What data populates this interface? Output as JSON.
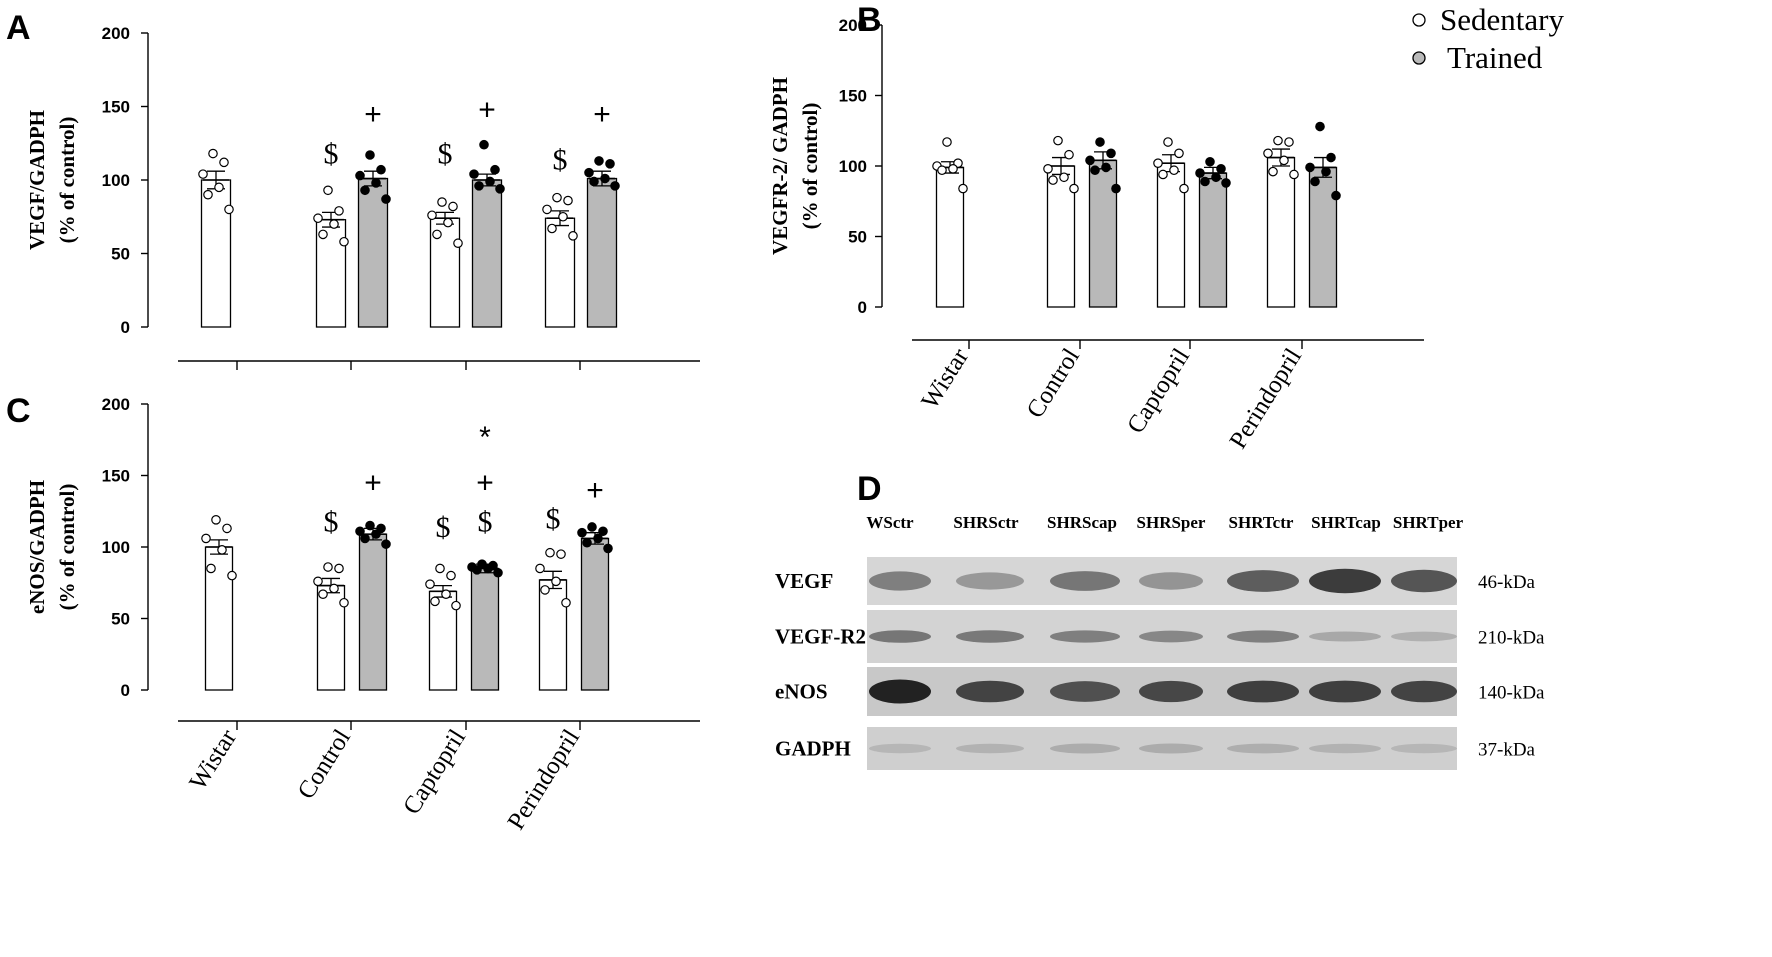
{
  "legend": {
    "items": [
      {
        "label": "Sedentary",
        "color": "#ffffff"
      },
      {
        "label": "Trained",
        "color": "#b9b9b9"
      }
    ]
  },
  "colors": {
    "sedentary_bar": "#ffffff",
    "trained_bar": "#b9b9b9",
    "axis": "#000000"
  },
  "chart_data": [
    {
      "panel": "A",
      "type": "bar",
      "ylabel": [
        "VEGF/GADPH",
        "(% of control)"
      ],
      "ylim": [
        0,
        200
      ],
      "yticks": [
        0,
        50,
        100,
        150,
        200
      ],
      "categories": [
        "Wistar",
        "Control",
        "Captopril",
        "Perindopril"
      ],
      "series": [
        {
          "name": "Sedentary",
          "values": [
            100,
            73,
            74,
            74
          ],
          "errors": [
            6,
            5,
            4,
            5
          ],
          "points": [
            [
              118,
              112,
              104,
              95,
              90,
              80
            ],
            [
              93,
              79,
              74,
              70,
              63,
              58
            ],
            [
              85,
              82,
              76,
              71,
              63,
              57
            ],
            [
              88,
              86,
              80,
              75,
              67,
              62
            ]
          ]
        },
        {
          "name": "Trained",
          "values": [
            null,
            101,
            100,
            101
          ],
          "errors": [
            null,
            5,
            4,
            5
          ],
          "points": [
            [],
            [
              117,
              107,
              103,
              98,
              93,
              87
            ],
            [
              124,
              107,
              104,
              99,
              96,
              94
            ],
            [
              113,
              111,
              105,
              101,
              99,
              96
            ]
          ]
        }
      ],
      "annotations": [
        {
          "category": 1,
          "series": 0,
          "text": "$",
          "y": 118
        },
        {
          "category": 1,
          "series": 1,
          "text": "+",
          "y": 145
        },
        {
          "category": 2,
          "series": 0,
          "text": "$",
          "y": 118
        },
        {
          "category": 2,
          "series": 1,
          "text": "+",
          "y": 148
        },
        {
          "category": 3,
          "series": 0,
          "text": "$",
          "y": 114
        },
        {
          "category": 3,
          "series": 1,
          "text": "+",
          "y": 145
        }
      ]
    },
    {
      "panel": "B",
      "type": "bar",
      "ylabel": [
        "VEGFR-2/ GADPH",
        "(%  of control)"
      ],
      "ylim": [
        0,
        200
      ],
      "yticks": [
        0,
        50,
        100,
        150,
        200
      ],
      "categories": [
        "Wistar",
        "Control",
        "Captopril",
        "Perindopril"
      ],
      "series": [
        {
          "name": "Sedentary",
          "values": [
            99,
            100,
            102,
            106
          ],
          "errors": [
            4,
            6,
            6,
            6
          ],
          "points": [
            [
              117,
              102,
              100,
              98,
              97,
              84
            ],
            [
              118,
              108,
              98,
              92,
              90,
              84
            ],
            [
              117,
              109,
              102,
              97,
              94,
              84
            ],
            [
              118,
              117,
              109,
              104,
              96,
              94
            ]
          ]
        },
        {
          "name": "Trained",
          "values": [
            null,
            104,
            95,
            99
          ],
          "errors": [
            null,
            6,
            4,
            7
          ],
          "points": [
            [],
            [
              117,
              109,
              104,
              99,
              97,
              84
            ],
            [
              103,
              98,
              95,
              92,
              89,
              88
            ],
            [
              128,
              106,
              99,
              96,
              89,
              79
            ]
          ]
        }
      ],
      "annotations": []
    },
    {
      "panel": "C",
      "type": "bar",
      "ylabel": [
        "eNOS/GADPH",
        "(% of control)"
      ],
      "ylim": [
        0,
        200
      ],
      "yticks": [
        0,
        50,
        100,
        150,
        200
      ],
      "categories": [
        "Wistar",
        "Control",
        "Captopril",
        "Perindopril"
      ],
      "series": [
        {
          "name": "Sedentary",
          "values": [
            100,
            73,
            69,
            77
          ],
          "errors": [
            5,
            5,
            4,
            6
          ],
          "points": [
            [
              119,
              113,
              106,
              98,
              85,
              80
            ],
            [
              86,
              85,
              76,
              71,
              67,
              61
            ],
            [
              85,
              80,
              74,
              67,
              62,
              59
            ],
            [
              96,
              95,
              85,
              76,
              70,
              61
            ]
          ]
        },
        {
          "name": "Trained",
          "values": [
            null,
            109,
            85,
            106
          ],
          "errors": [
            null,
            4,
            3,
            4
          ],
          "points": [
            [],
            [
              115,
              113,
              111,
              109,
              106,
              102
            ],
            [
              88,
              87,
              86,
              85,
              84,
              82
            ],
            [
              114,
              111,
              110,
              106,
              103,
              99
            ]
          ]
        }
      ],
      "annotations": [
        {
          "category": 1,
          "series": 0,
          "text": "$",
          "y": 118
        },
        {
          "category": 1,
          "series": 1,
          "text": "+",
          "y": 145
        },
        {
          "category": 2,
          "series": 0,
          "text": "$",
          "y": 114
        },
        {
          "category": 2,
          "series": 1,
          "text": "$",
          "y": 118
        },
        {
          "category": 2,
          "series": 1,
          "text": "+",
          "y": 145
        },
        {
          "category": 2,
          "series": 1,
          "text": "*",
          "y": 177
        },
        {
          "category": 3,
          "series": 0,
          "text": "$",
          "y": 120
        },
        {
          "category": 3,
          "series": 1,
          "text": "+",
          "y": 140
        }
      ]
    }
  ],
  "blot": {
    "panel": "D",
    "lanes": [
      "WSctr",
      "SHRSctr",
      "SHRScap",
      "SHRSper",
      "SHRTctr",
      "SHRTcap",
      "SHRTper"
    ],
    "rows": [
      {
        "protein": "VEGF",
        "size": "46-kDa",
        "intensity": [
          0.45,
          0.3,
          0.5,
          0.32,
          0.65,
          0.85,
          0.7
        ],
        "background": "#d6d6d6"
      },
      {
        "protein": "VEGF-R2",
        "size": "210-kDa",
        "intensity": [
          0.5,
          0.48,
          0.45,
          0.4,
          0.45,
          0.2,
          0.15
        ],
        "background": "#d3d3d3"
      },
      {
        "protein": "eNOS",
        "size": "140-kDa",
        "intensity": [
          1.0,
          0.8,
          0.72,
          0.78,
          0.82,
          0.82,
          0.8
        ],
        "background": "#c8c8c8"
      },
      {
        "protein": "GADPH",
        "size": "37-kDa",
        "intensity": [
          0.12,
          0.14,
          0.18,
          0.18,
          0.16,
          0.14,
          0.12
        ],
        "background": "#cfcfcf"
      }
    ]
  }
}
